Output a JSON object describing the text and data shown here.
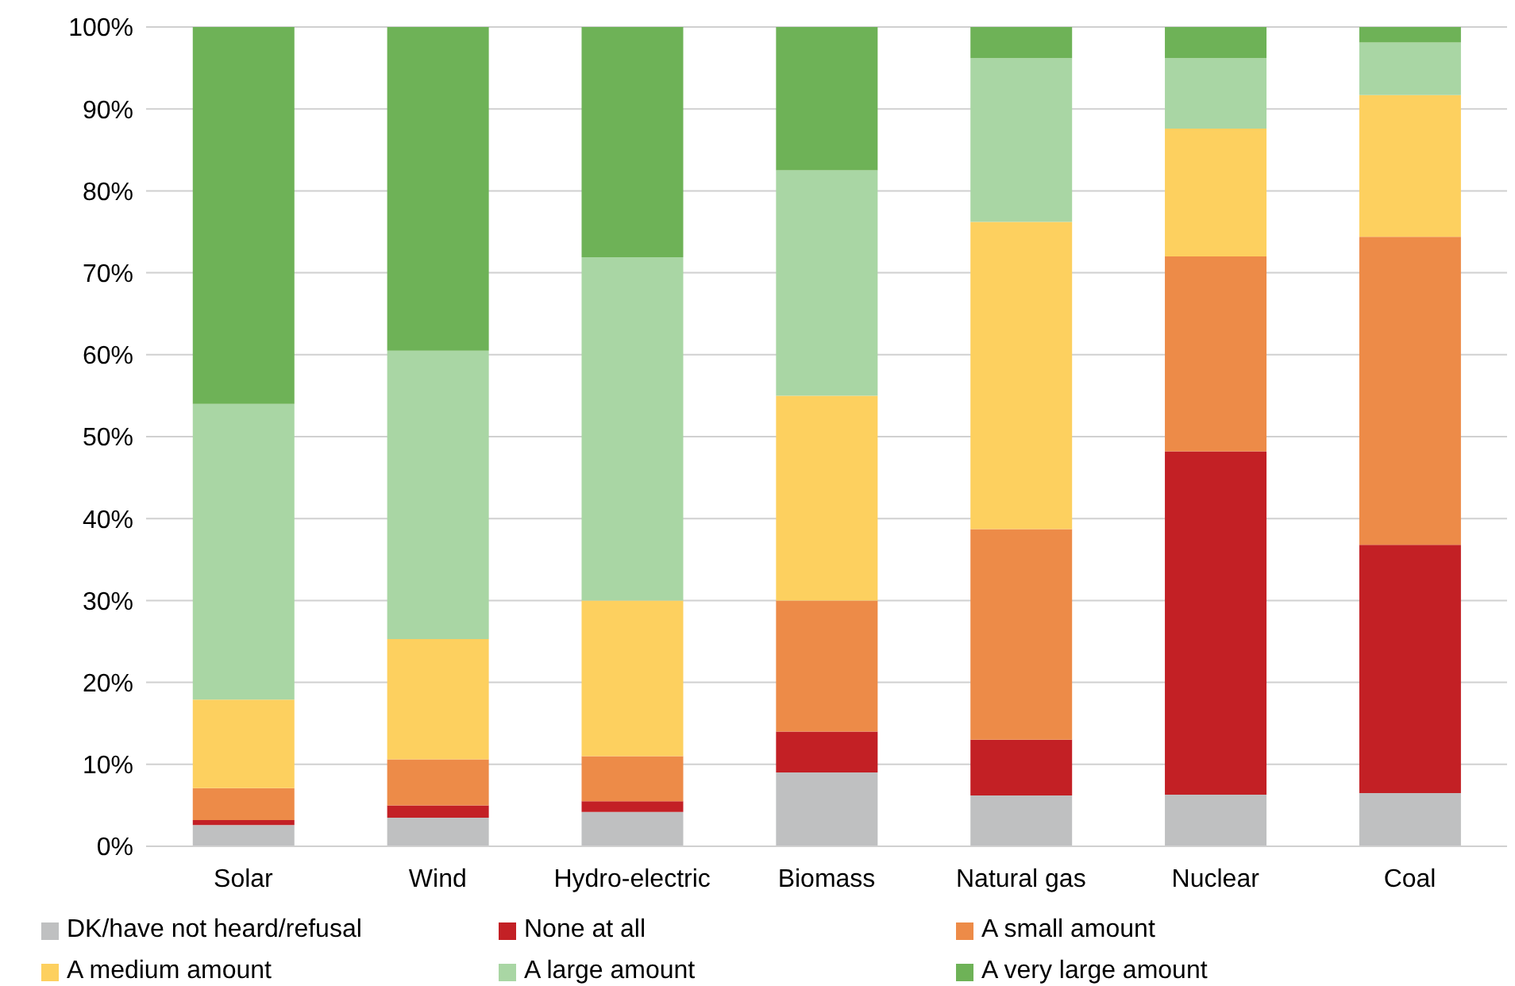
{
  "chart_data": {
    "type": "bar",
    "stacked": true,
    "categories": [
      "Solar",
      "Wind",
      "Hydro-electric",
      "Biomass",
      "Natural gas",
      "Nuclear",
      "Coal"
    ],
    "series": [
      {
        "name": "DK/have not heard/refusal",
        "color": "#bfc0c1",
        "values": [
          2.6,
          3.5,
          4.2,
          9.0,
          6.2,
          6.3,
          6.5
        ]
      },
      {
        "name": "None at all",
        "color": "#c32025",
        "values": [
          0.6,
          1.5,
          1.3,
          5.0,
          6.8,
          41.9,
          30.3
        ]
      },
      {
        "name": "A small amount",
        "color": "#ed8b48",
        "values": [
          3.9,
          5.6,
          5.5,
          16.0,
          25.7,
          23.8,
          37.6
        ]
      },
      {
        "name": "A medium amount",
        "color": "#fdd05f",
        "values": [
          10.8,
          14.7,
          19.0,
          25.0,
          37.5,
          15.6,
          17.3
        ]
      },
      {
        "name": "A large amount",
        "color": "#a9d6a4",
        "values": [
          36.1,
          35.2,
          41.9,
          27.5,
          20.0,
          8.6,
          6.4
        ]
      },
      {
        "name": "A very large amount",
        "color": "#6eb257",
        "values": [
          46.0,
          39.5,
          28.1,
          17.5,
          3.8,
          3.8,
          1.9
        ]
      }
    ],
    "ylim": [
      0,
      100
    ],
    "yticks": [
      {
        "value": 0,
        "label": "0%"
      },
      {
        "value": 10,
        "label": "10%"
      },
      {
        "value": 20,
        "label": "20%"
      },
      {
        "value": 30,
        "label": "30%"
      },
      {
        "value": 40,
        "label": "40%"
      },
      {
        "value": 50,
        "label": "50%"
      },
      {
        "value": 60,
        "label": "60%"
      },
      {
        "value": 70,
        "label": "70%"
      },
      {
        "value": 80,
        "label": "80%"
      },
      {
        "value": 90,
        "label": "90%"
      },
      {
        "value": 100,
        "label": "100%"
      }
    ],
    "grid": "y",
    "legend": "bottom"
  }
}
